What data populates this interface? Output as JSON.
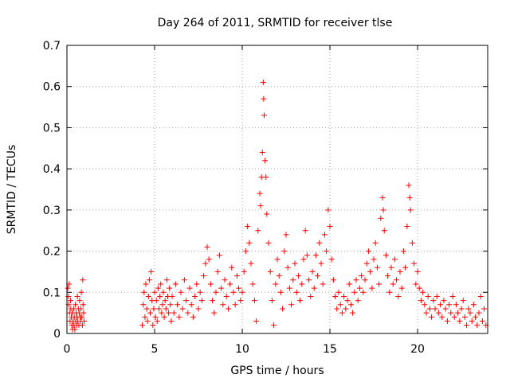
{
  "chart_data": {
    "type": "scatter",
    "title": "Day 264 of 2011, SRMTID for receiver tlse",
    "xlabel": "GPS time / hours",
    "ylabel": "SRMTID / TECUs",
    "xlim": [
      0,
      24
    ],
    "ylim": [
      0,
      0.7
    ],
    "xticks": [
      0,
      5,
      10,
      15,
      20
    ],
    "yticks": [
      0,
      0.1,
      0.2,
      0.3,
      0.4,
      0.5,
      0.6,
      0.7
    ],
    "xtick_labels": [
      "0",
      "5",
      "10",
      "15",
      "20"
    ],
    "ytick_labels": [
      "0",
      "0.1",
      "0.2",
      "0.3",
      "0.4",
      "0.5",
      "0.6",
      "0.7"
    ],
    "grid": true,
    "marker": "+",
    "color": "#ff0000",
    "series": [
      {
        "name": "SRMTID",
        "points": [
          [
            0.05,
            0.11
          ],
          [
            0.08,
            0.09
          ],
          [
            0.1,
            0.07
          ],
          [
            0.12,
            0.12
          ],
          [
            0.15,
            0.05
          ],
          [
            0.18,
            0.03
          ],
          [
            0.2,
            0.08
          ],
          [
            0.22,
            0.06
          ],
          [
            0.25,
            0.04
          ],
          [
            0.28,
            0.02
          ],
          [
            0.3,
            0.05
          ],
          [
            0.32,
            0.01
          ],
          [
            0.35,
            0.03
          ],
          [
            0.38,
            0.06
          ],
          [
            0.4,
            0.02
          ],
          [
            0.42,
            0.04
          ],
          [
            0.45,
            0.01
          ],
          [
            0.48,
            0.07
          ],
          [
            0.5,
            0.03
          ],
          [
            0.52,
            0.05
          ],
          [
            0.55,
            0.02
          ],
          [
            0.58,
            0.04
          ],
          [
            0.6,
            0.09
          ],
          [
            0.62,
            0.03
          ],
          [
            0.65,
            0.06
          ],
          [
            0.68,
            0.02
          ],
          [
            0.7,
            0.05
          ],
          [
            0.72,
            0.08
          ],
          [
            0.75,
            0.04
          ],
          [
            0.78,
            0.03
          ],
          [
            0.8,
            0.06
          ],
          [
            0.82,
            0.1
          ],
          [
            0.85,
            0.04
          ],
          [
            0.88,
            0.02
          ],
          [
            0.9,
            0.13
          ],
          [
            0.92,
            0.07
          ],
          [
            0.95,
            0.05
          ],
          [
            0.98,
            0.03
          ],
          [
            4.3,
            0.02
          ],
          [
            4.35,
            0.07
          ],
          [
            4.4,
            0.1
          ],
          [
            4.45,
            0.04
          ],
          [
            4.5,
            0.12
          ],
          [
            4.55,
            0.06
          ],
          [
            4.6,
            0.03
          ],
          [
            4.65,
            0.09
          ],
          [
            4.7,
            0.13
          ],
          [
            4.75,
            0.05
          ],
          [
            4.8,
            0.15
          ],
          [
            4.85,
            0.08
          ],
          [
            4.9,
            0.02
          ],
          [
            4.95,
            0.06
          ],
          [
            5.0,
            0.1
          ],
          [
            5.05,
            0.04
          ],
          [
            5.1,
            0.08
          ],
          [
            5.15,
            0.03
          ],
          [
            5.2,
            0.11
          ],
          [
            5.25,
            0.06
          ],
          [
            5.3,
            0.09
          ],
          [
            5.35,
            0.12
          ],
          [
            5.4,
            0.05
          ],
          [
            5.45,
            0.07
          ],
          [
            5.5,
            0.1
          ],
          [
            5.55,
            0.04
          ],
          [
            5.6,
            0.08
          ],
          [
            5.65,
            0.06
          ],
          [
            5.7,
            0.13
          ],
          [
            5.75,
            0.09
          ],
          [
            5.8,
            0.05
          ],
          [
            5.85,
            0.11
          ],
          [
            5.9,
            0.07
          ],
          [
            5.95,
            0.03
          ],
          [
            6.0,
            0.09
          ],
          [
            6.1,
            0.05
          ],
          [
            6.2,
            0.12
          ],
          [
            6.3,
            0.07
          ],
          [
            6.4,
            0.04
          ],
          [
            6.5,
            0.1
          ],
          [
            6.6,
            0.06
          ],
          [
            6.7,
            0.13
          ],
          [
            6.8,
            0.08
          ],
          [
            6.9,
            0.05
          ],
          [
            7.0,
            0.11
          ],
          [
            7.1,
            0.07
          ],
          [
            7.2,
            0.04
          ],
          [
            7.3,
            0.09
          ],
          [
            7.4,
            0.12
          ],
          [
            7.5,
            0.06
          ],
          [
            7.6,
            0.1
          ],
          [
            7.7,
            0.08
          ],
          [
            7.8,
            0.14
          ],
          [
            7.9,
            0.17
          ],
          [
            8.0,
            0.21
          ],
          [
            8.1,
            0.18
          ],
          [
            8.2,
            0.12
          ],
          [
            8.3,
            0.08
          ],
          [
            8.4,
            0.05
          ],
          [
            8.5,
            0.1
          ],
          [
            8.6,
            0.15
          ],
          [
            8.7,
            0.19
          ],
          [
            8.8,
            0.11
          ],
          [
            8.9,
            0.07
          ],
          [
            9.0,
            0.13
          ],
          [
            9.1,
            0.09
          ],
          [
            9.2,
            0.06
          ],
          [
            9.3,
            0.12
          ],
          [
            9.4,
            0.16
          ],
          [
            9.5,
            0.1
          ],
          [
            9.6,
            0.07
          ],
          [
            9.7,
            0.14
          ],
          [
            9.8,
            0.11
          ],
          [
            9.9,
            0.08
          ],
          [
            10.0,
            0.1
          ],
          [
            10.1,
            0.15
          ],
          [
            10.2,
            0.2
          ],
          [
            10.3,
            0.26
          ],
          [
            10.4,
            0.22
          ],
          [
            10.5,
            0.17
          ],
          [
            10.6,
            0.12
          ],
          [
            10.7,
            0.08
          ],
          [
            10.8,
            0.03
          ],
          [
            10.9,
            0.25
          ],
          [
            11.0,
            0.34
          ],
          [
            11.05,
            0.31
          ],
          [
            11.1,
            0.38
          ],
          [
            11.15,
            0.44
          ],
          [
            11.2,
            0.61
          ],
          [
            11.22,
            0.57
          ],
          [
            11.25,
            0.53
          ],
          [
            11.3,
            0.42
          ],
          [
            11.35,
            0.38
          ],
          [
            11.4,
            0.29
          ],
          [
            11.5,
            0.22
          ],
          [
            11.6,
            0.15
          ],
          [
            11.7,
            0.08
          ],
          [
            11.8,
            0.02
          ],
          [
            11.9,
            0.12
          ],
          [
            12.0,
            0.18
          ],
          [
            12.1,
            0.14
          ],
          [
            12.2,
            0.1
          ],
          [
            12.3,
            0.06
          ],
          [
            12.4,
            0.2
          ],
          [
            12.5,
            0.24
          ],
          [
            12.6,
            0.16
          ],
          [
            12.7,
            0.11
          ],
          [
            12.8,
            0.07
          ],
          [
            12.9,
            0.13
          ],
          [
            13.0,
            0.17
          ],
          [
            13.1,
            0.1
          ],
          [
            13.2,
            0.14
          ],
          [
            13.3,
            0.08
          ],
          [
            13.4,
            0.12
          ],
          [
            13.5,
            0.18
          ],
          [
            13.6,
            0.25
          ],
          [
            13.7,
            0.19
          ],
          [
            13.8,
            0.13
          ],
          [
            13.9,
            0.09
          ],
          [
            14.0,
            0.15
          ],
          [
            14.1,
            0.11
          ],
          [
            14.2,
            0.19
          ],
          [
            14.3,
            0.14
          ],
          [
            14.4,
            0.22
          ],
          [
            14.5,
            0.17
          ],
          [
            14.6,
            0.12
          ],
          [
            14.7,
            0.24
          ],
          [
            14.8,
            0.2
          ],
          [
            14.9,
            0.3
          ],
          [
            15.0,
            0.26
          ],
          [
            15.1,
            0.18
          ],
          [
            15.2,
            0.13
          ],
          [
            15.3,
            0.09
          ],
          [
            15.4,
            0.06
          ],
          [
            15.5,
            0.1
          ],
          [
            15.6,
            0.07
          ],
          [
            15.7,
            0.05
          ],
          [
            15.8,
            0.09
          ],
          [
            15.9,
            0.06
          ],
          [
            16.0,
            0.08
          ],
          [
            16.1,
            0.12
          ],
          [
            16.2,
            0.07
          ],
          [
            16.3,
            0.05
          ],
          [
            16.4,
            0.1
          ],
          [
            16.5,
            0.13
          ],
          [
            16.6,
            0.08
          ],
          [
            16.7,
            0.11
          ],
          [
            16.8,
            0.14
          ],
          [
            16.9,
            0.1
          ],
          [
            17.0,
            0.13
          ],
          [
            17.1,
            0.17
          ],
          [
            17.2,
            0.2
          ],
          [
            17.3,
            0.15
          ],
          [
            17.4,
            0.11
          ],
          [
            17.5,
            0.18
          ],
          [
            17.6,
            0.22
          ],
          [
            17.7,
            0.16
          ],
          [
            17.8,
            0.12
          ],
          [
            17.9,
            0.28
          ],
          [
            18.0,
            0.33
          ],
          [
            18.05,
            0.3
          ],
          [
            18.1,
            0.25
          ],
          [
            18.2,
            0.19
          ],
          [
            18.3,
            0.14
          ],
          [
            18.4,
            0.1
          ],
          [
            18.5,
            0.16
          ],
          [
            18.6,
            0.12
          ],
          [
            18.7,
            0.18
          ],
          [
            18.8,
            0.13
          ],
          [
            18.9,
            0.09
          ],
          [
            19.0,
            0.15
          ],
          [
            19.1,
            0.11
          ],
          [
            19.2,
            0.2
          ],
          [
            19.3,
            0.16
          ],
          [
            19.4,
            0.26
          ],
          [
            19.5,
            0.36
          ],
          [
            19.55,
            0.33
          ],
          [
            19.6,
            0.3
          ],
          [
            19.7,
            0.22
          ],
          [
            19.8,
            0.17
          ],
          [
            19.9,
            0.12
          ],
          [
            20.0,
            0.15
          ],
          [
            20.1,
            0.11
          ],
          [
            20.2,
            0.08
          ],
          [
            20.3,
            0.1
          ],
          [
            20.4,
            0.07
          ],
          [
            20.5,
            0.05
          ],
          [
            20.6,
            0.09
          ],
          [
            20.7,
            0.06
          ],
          [
            20.8,
            0.04
          ],
          [
            20.9,
            0.08
          ],
          [
            21.0,
            0.06
          ],
          [
            21.1,
            0.09
          ],
          [
            21.2,
            0.05
          ],
          [
            21.3,
            0.07
          ],
          [
            21.4,
            0.04
          ],
          [
            21.5,
            0.08
          ],
          [
            21.6,
            0.06
          ],
          [
            21.7,
            0.03
          ],
          [
            21.8,
            0.07
          ],
          [
            21.9,
            0.05
          ],
          [
            22.0,
            0.09
          ],
          [
            22.1,
            0.04
          ],
          [
            22.2,
            0.07
          ],
          [
            22.3,
            0.05
          ],
          [
            22.4,
            0.03
          ],
          [
            22.5,
            0.06
          ],
          [
            22.6,
            0.08
          ],
          [
            22.7,
            0.04
          ],
          [
            22.8,
            0.02
          ],
          [
            22.9,
            0.06
          ],
          [
            23.0,
            0.05
          ],
          [
            23.1,
            0.03
          ],
          [
            23.2,
            0.07
          ],
          [
            23.3,
            0.04
          ],
          [
            23.4,
            0.02
          ],
          [
            23.5,
            0.05
          ],
          [
            23.6,
            0.09
          ],
          [
            23.7,
            0.03
          ],
          [
            23.8,
            0.06
          ],
          [
            23.9,
            0.02
          ]
        ]
      }
    ]
  }
}
